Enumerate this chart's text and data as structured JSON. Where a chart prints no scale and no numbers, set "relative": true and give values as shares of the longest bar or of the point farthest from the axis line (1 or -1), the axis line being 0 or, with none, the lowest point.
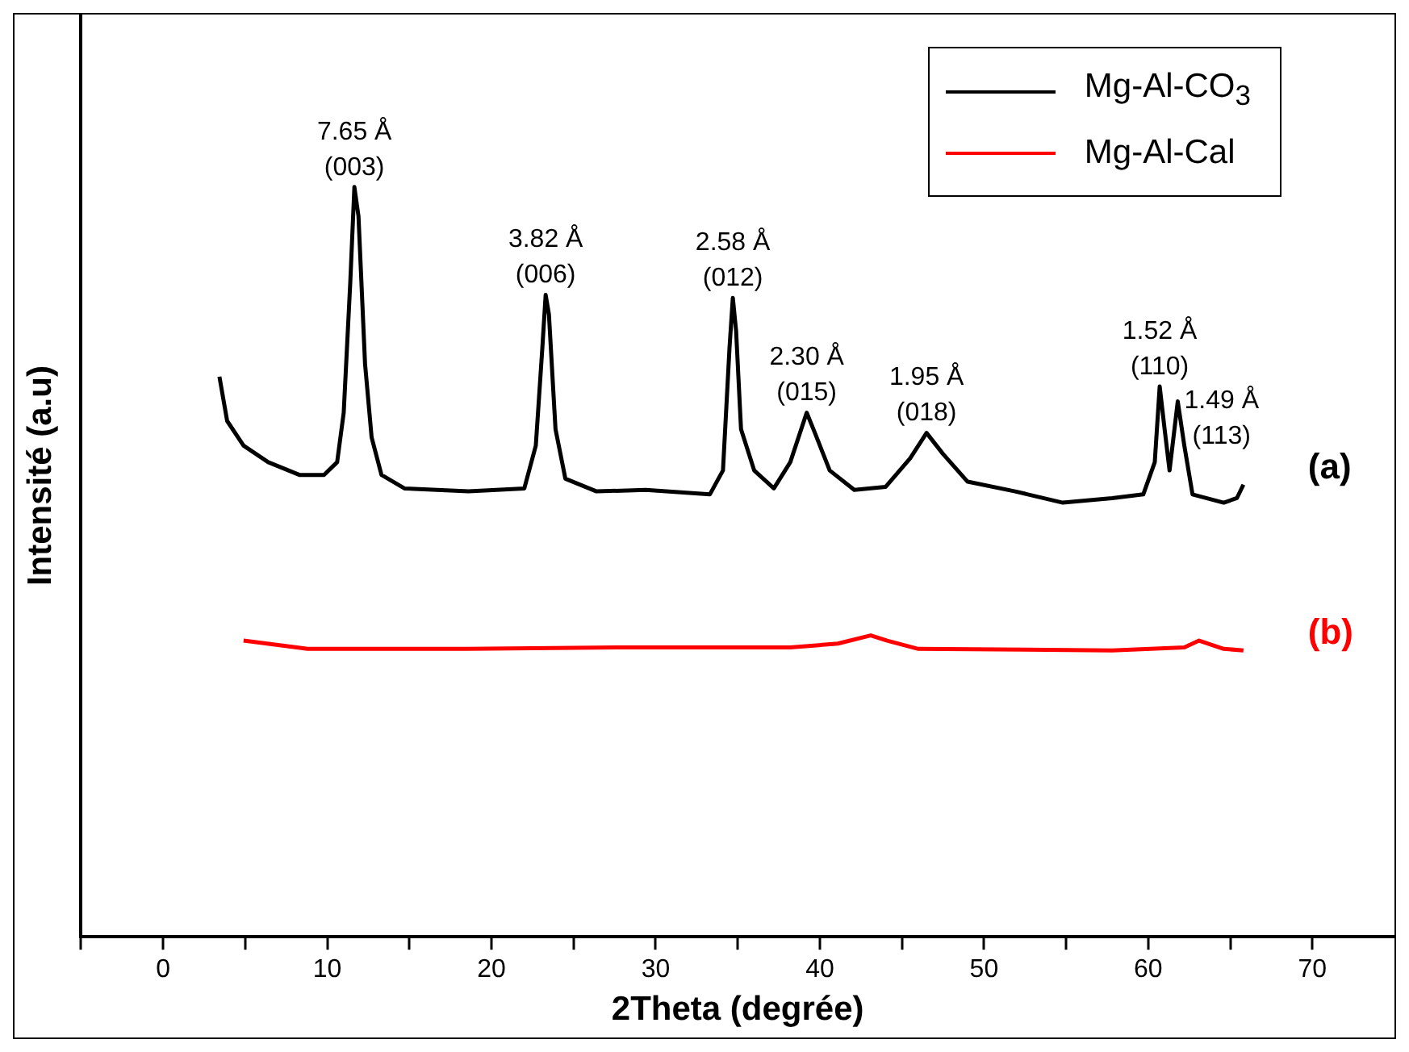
{
  "chart_data": {
    "type": "line",
    "relative": true,
    "xlabel": "2Theta (degrée)",
    "ylabel": "Intensité (a.u)",
    "xlim": [
      -5,
      75
    ],
    "xticks": [
      {
        "value": -5,
        "label": null
      },
      0,
      {
        "value": 5,
        "label": null
      },
      10,
      {
        "value": 15,
        "label": null
      },
      20,
      {
        "value": 25,
        "label": null
      },
      30,
      {
        "value": 35,
        "label": null
      },
      40,
      {
        "value": 45,
        "label": null
      },
      50,
      {
        "value": 55,
        "label": null
      },
      60,
      {
        "value": 65,
        "label": null
      },
      70
    ],
    "legend": "top right",
    "grid": false,
    "marker": "none",
    "line_style": "solid",
    "series": [
      {
        "name": "Mg-Al-CO$_{3}$",
        "color": "#000000",
        "x": [
          3.43,
          3.9,
          4.9,
          6.4,
          8.3,
          9.8,
          10.6,
          11.0,
          11.4,
          11.65,
          11.9,
          12.3,
          12.7,
          13.3,
          14.7,
          18.6,
          22.0,
          22.7,
          23.1,
          23.3,
          23.5,
          23.9,
          24.5,
          26.4,
          29.4,
          33.3,
          34.1,
          34.5,
          34.7,
          34.9,
          35.2,
          36.0,
          37.2,
          38.2,
          39.2,
          39.7,
          40.6,
          42.1,
          44.0,
          45.5,
          46.5,
          47.5,
          49.0,
          51.9,
          54.8,
          57.8,
          59.7,
          60.4,
          60.7,
          61.0,
          61.3,
          61.8,
          62.2,
          62.7,
          64.6,
          65.4,
          65.8
        ],
        "values": [
          0.747,
          0.688,
          0.655,
          0.633,
          0.616,
          0.616,
          0.633,
          0.699,
          0.873,
          1.0,
          0.961,
          0.764,
          0.666,
          0.616,
          0.598,
          0.594,
          0.598,
          0.655,
          0.786,
          0.856,
          0.83,
          0.677,
          0.611,
          0.594,
          0.596,
          0.59,
          0.622,
          0.786,
          0.852,
          0.808,
          0.677,
          0.622,
          0.598,
          0.633,
          0.699,
          0.672,
          0.622,
          0.596,
          0.6,
          0.638,
          0.672,
          0.644,
          0.607,
          0.594,
          0.579,
          0.585,
          0.59,
          0.633,
          0.734,
          0.677,
          0.622,
          0.714,
          0.655,
          0.59,
          0.579,
          0.585,
          0.603
        ]
      },
      {
        "name": "Mg-Al-Cal",
        "color": "#ff0000",
        "x": [
          4.9,
          8.8,
          18.6,
          28.4,
          38.2,
          41.1,
          43.1,
          44.1,
          46.0,
          57.8,
          62.2,
          63.1,
          64.6,
          65.8
        ],
        "values": [
          0.395,
          0.384,
          0.384,
          0.386,
          0.386,
          0.391,
          0.402,
          0.395,
          0.384,
          0.382,
          0.386,
          0.395,
          0.384,
          0.382
        ]
      }
    ],
    "annotations": [
      {
        "text": "7.65 Å\n(003)",
        "x": 11.65,
        "y": 1.0
      },
      {
        "text": "3.82 Å\n(006)",
        "x": 23.3,
        "y": 0.856
      },
      {
        "text": "2.58 Å\n(012)",
        "x": 34.7,
        "y": 0.852
      },
      {
        "text": "2.30 Å\n(015)",
        "x": 39.2,
        "y": 0.699
      },
      {
        "text": "1.95 Å\n(018)",
        "x": 46.5,
        "y": 0.672
      },
      {
        "text": "1.52 Å\n(110)",
        "x": 60.7,
        "y": 0.734
      },
      {
        "text": "1.49 Å\n(113)",
        "x": 61.8,
        "y": 0.714
      },
      "(a)",
      "(b)"
    ]
  }
}
